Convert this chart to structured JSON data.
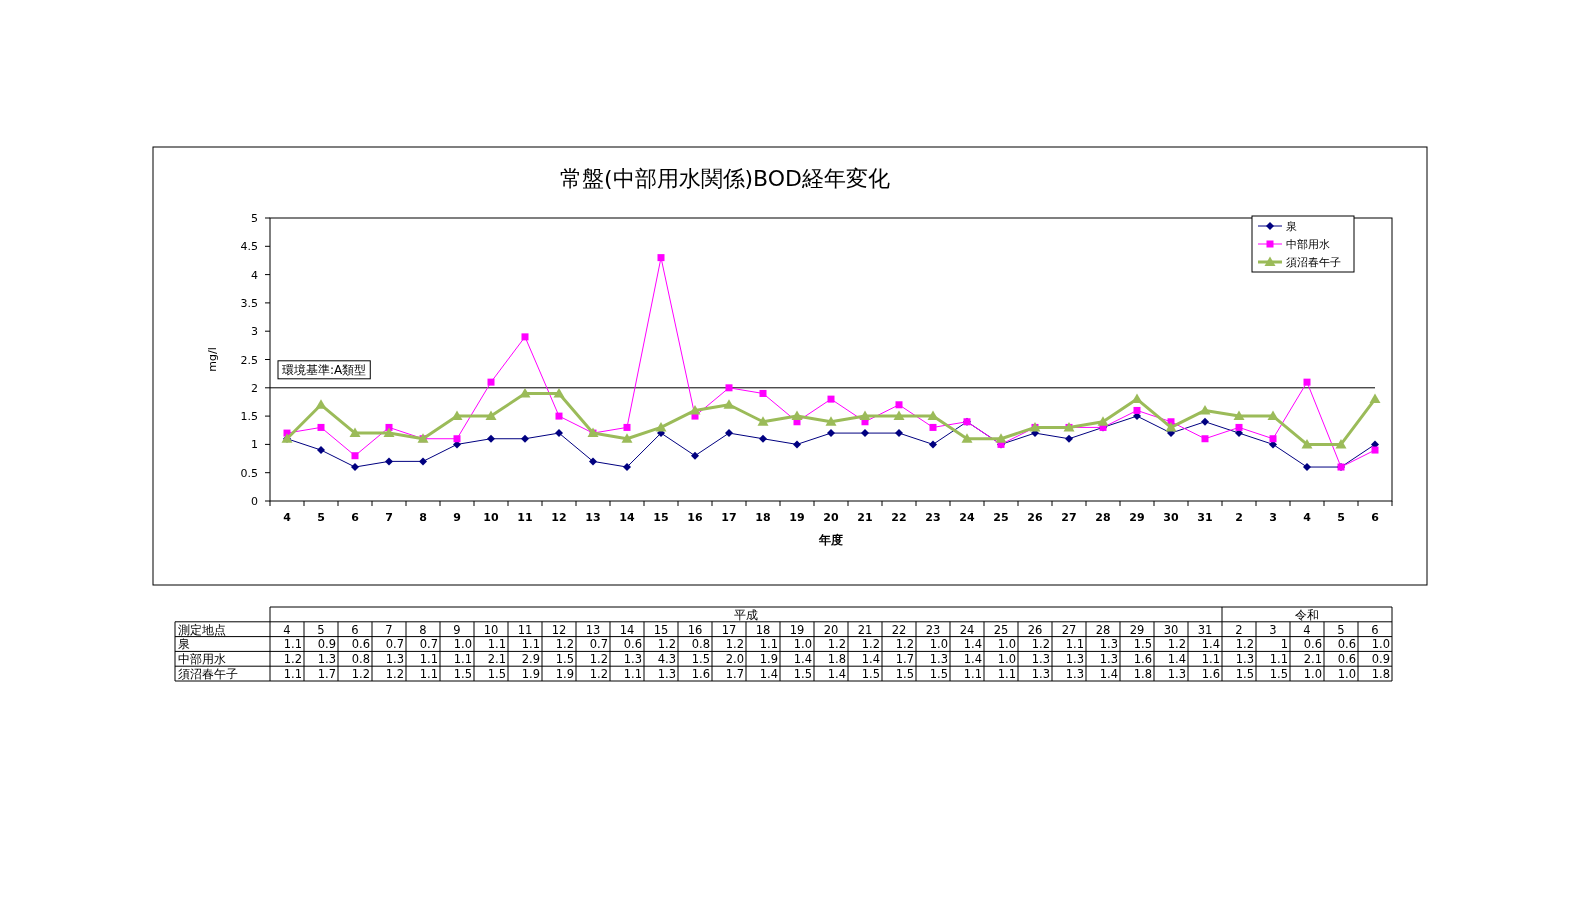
{
  "chart_data": {
    "type": "line",
    "title": "常盤(中部用水関係)BOD経年変化",
    "xlabel": "年度",
    "ylabel": "mg/l",
    "categories": [
      "4",
      "5",
      "6",
      "7",
      "8",
      "9",
      "10",
      "11",
      "12",
      "13",
      "14",
      "15",
      "16",
      "17",
      "18",
      "19",
      "20",
      "21",
      "22",
      "23",
      "24",
      "25",
      "26",
      "27",
      "28",
      "29",
      "30",
      "31",
      "2",
      "3",
      "4",
      "5",
      "6"
    ],
    "series": [
      {
        "name": "泉",
        "color": "#000080",
        "marker": "diamond",
        "values": [
          1.1,
          0.9,
          0.6,
          0.7,
          0.7,
          1.0,
          1.1,
          1.1,
          1.2,
          0.7,
          0.6,
          1.2,
          0.8,
          1.2,
          1.1,
          1.0,
          1.2,
          1.2,
          1.2,
          1.0,
          1.4,
          1.0,
          1.2,
          1.1,
          1.3,
          1.5,
          1.2,
          1.4,
          1.2,
          1,
          0.6,
          0.6,
          1.0
        ],
        "value_labels": [
          "1.1",
          "0.9",
          "0.6",
          "0.7",
          "0.7",
          "1.0",
          "1.1",
          "1.1",
          "1.2",
          "0.7",
          "0.6",
          "1.2",
          "0.8",
          "1.2",
          "1.1",
          "1.0",
          "1.2",
          "1.2",
          "1.2",
          "1.0",
          "1.4",
          "1.0",
          "1.2",
          "1.1",
          "1.3",
          "1.5",
          "1.2",
          "1.4",
          "1.2",
          "1",
          "0.6",
          "0.6",
          "1.0"
        ]
      },
      {
        "name": "中部用水",
        "color": "#ff00ff",
        "marker": "square",
        "values": [
          1.2,
          1.3,
          0.8,
          1.3,
          1.1,
          1.1,
          2.1,
          2.9,
          1.5,
          1.2,
          1.3,
          4.3,
          1.5,
          2.0,
          1.9,
          1.4,
          1.8,
          1.4,
          1.7,
          1.3,
          1.4,
          1.0,
          1.3,
          1.3,
          1.3,
          1.6,
          1.4,
          1.1,
          1.3,
          1.1,
          2.1,
          0.6,
          0.9
        ],
        "value_labels": [
          "1.2",
          "1.3",
          "0.8",
          "1.3",
          "1.1",
          "1.1",
          "2.1",
          "2.9",
          "1.5",
          "1.2",
          "1.3",
          "4.3",
          "1.5",
          "2.0",
          "1.9",
          "1.4",
          "1.8",
          "1.4",
          "1.7",
          "1.3",
          "1.4",
          "1.0",
          "1.3",
          "1.3",
          "1.3",
          "1.6",
          "1.4",
          "1.1",
          "1.3",
          "1.1",
          "2.1",
          "0.6",
          "0.9"
        ]
      },
      {
        "name": "須沼春午子",
        "color": "#9bbb59",
        "marker": "triangle",
        "values": [
          1.1,
          1.7,
          1.2,
          1.2,
          1.1,
          1.5,
          1.5,
          1.9,
          1.9,
          1.2,
          1.1,
          1.3,
          1.6,
          1.7,
          1.4,
          1.5,
          1.4,
          1.5,
          1.5,
          1.5,
          1.1,
          1.1,
          1.3,
          1.3,
          1.4,
          1.8,
          1.3,
          1.6,
          1.5,
          1.5,
          1.0,
          1.0,
          1.8
        ],
        "value_labels": [
          "1.1",
          "1.7",
          "1.2",
          "1.2",
          "1.1",
          "1.5",
          "1.5",
          "1.9",
          "1.9",
          "1.2",
          "1.1",
          "1.3",
          "1.6",
          "1.7",
          "1.4",
          "1.5",
          "1.4",
          "1.5",
          "1.5",
          "1.5",
          "1.1",
          "1.1",
          "1.3",
          "1.3",
          "1.4",
          "1.8",
          "1.3",
          "1.6",
          "1.5",
          "1.5",
          "1.0",
          "1.0",
          "1.8"
        ]
      }
    ],
    "ylim": [
      0,
      5
    ],
    "yticks": [
      0,
      0.5,
      1,
      1.5,
      2,
      2.5,
      3,
      3.5,
      4,
      4.5,
      5
    ],
    "legend": "top right",
    "ref_lines": [
      {
        "axis": "y",
        "value": 2,
        "label": "環境基準:A類型",
        "color": "#000000"
      }
    ],
    "annotations": [
      "測定地点",
      "平成",
      "令和"
    ]
  }
}
